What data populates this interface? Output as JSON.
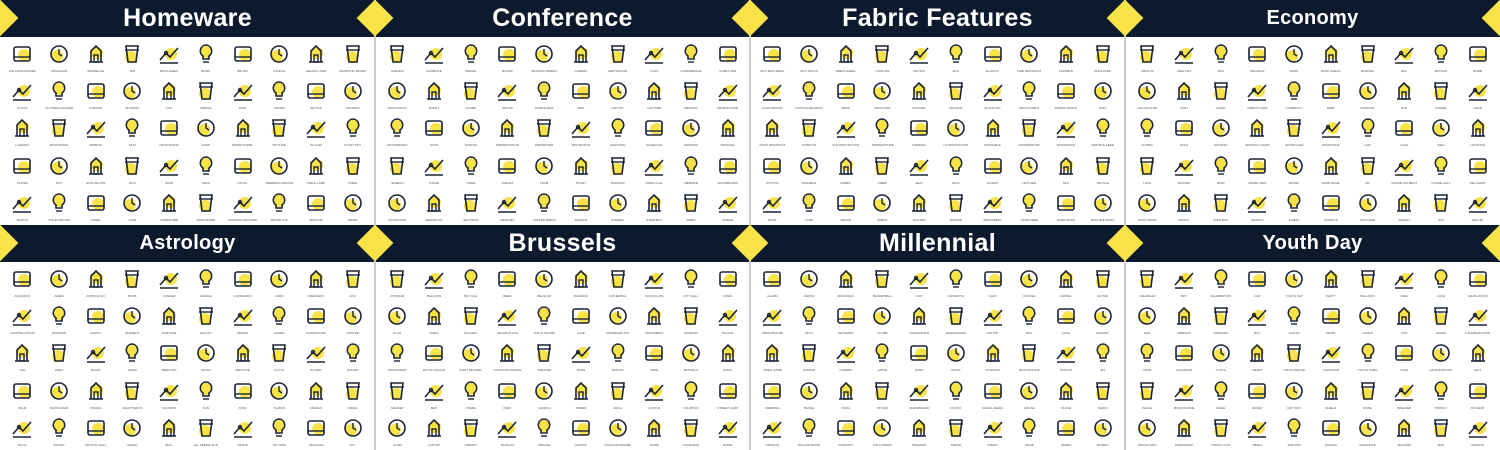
{
  "colors": {
    "header": "#0d1a2e",
    "accent": "#f8e348",
    "stroke": "#1c2434",
    "divider": "#c9ccd1"
  },
  "panels": [
    {
      "title": "Homeware",
      "icons": [
        "air conditioner",
        "armchair",
        "barbecue",
        "bin",
        "bookshelf",
        "bowl",
        "brush",
        "candle",
        "ceiling lamp",
        "chopping board",
        "clock",
        "clothes hanger",
        "curtain",
        "dustpan",
        "fan",
        "fridge",
        "iron",
        "juicer",
        "kettle",
        "lantern",
        "laundry",
        "microwave",
        "mirror",
        "mug",
        "nightstand",
        "oven",
        "paper towel",
        "picture",
        "pillow",
        "plant pot",
        "plates",
        "pot",
        "rolling pin",
        "rug",
        "soap",
        "sofa",
        "stool",
        "sweeping brush",
        "table lamp",
        "table",
        "teapot",
        "toilet brush",
        "towel",
        "vase",
        "wardrobe",
        "wash basin",
        "washing machine",
        "water jug",
        "window",
        "wiper"
      ]
    },
    {
      "title": "Conference",
      "icons": [
        "agenda",
        "audience",
        "badge",
        "board",
        "brainstorming",
        "camera",
        "certificate",
        "chat",
        "conference",
        "computer",
        "discussion",
        "event",
        "globe",
        "group",
        "handshake",
        "idea",
        "laptop",
        "lecture",
        "meeting",
        "microphone",
        "networking",
        "note",
        "podium",
        "presentation",
        "presenter",
        "projector",
        "question",
        "schedule",
        "seminar",
        "speaker",
        "speech",
        "stage",
        "table",
        "target",
        "team",
        "ticket",
        "training",
        "video call",
        "webinar",
        "whiteboard",
        "workshop",
        "hierarchy",
        "settings",
        "headset",
        "coffee break",
        "search",
        "screen",
        "strategy",
        "timer",
        "mobile"
      ]
    },
    {
      "title": "Fabric Features",
      "icons": [
        "anti bacterial",
        "anti static",
        "breathable",
        "cooling",
        "drying",
        "eco",
        "elastic",
        "fire resistant",
        "flexible",
        "insulated",
        "lightweight",
        "hypoallergenic",
        "mesh",
        "moisture",
        "natural",
        "organic",
        "quick dry",
        "recyclable",
        "shrink proof",
        "soft",
        "stain resistant",
        "stretch",
        "sun protection",
        "temperature",
        "thermal",
        "uv protection",
        "washable",
        "waterproof",
        "windproof",
        "wrinkle free",
        "cotton",
        "durable",
        "fabric",
        "fiber",
        "heat",
        "iron",
        "layers",
        "leather",
        "silk",
        "textile",
        "wool",
        "yarn",
        "weave",
        "sweat",
        "quilted",
        "padded",
        "absorbent",
        "odor free",
        "hand wash",
        "machine wash"
      ]
    },
    {
      "title": "Economy",
      "icons": [
        "abacus",
        "analysis",
        "bag",
        "balance",
        "bank",
        "bank check",
        "banking",
        "bill",
        "bitcoin",
        "bomb",
        "calculator",
        "cart",
        "chart",
        "credit card",
        "currency",
        "debt",
        "diamond",
        "eye",
        "funnel",
        "gear",
        "global",
        "gold",
        "growth",
        "growth chart",
        "hourglass",
        "insurance",
        "law",
        "loan",
        "idea",
        "location",
        "lock",
        "magnet",
        "mind",
        "money bag",
        "money",
        "mortgage",
        "oil",
        "online payment",
        "phone call",
        "pie chart",
        "piggy bank",
        "profit",
        "safe box",
        "search",
        "shield",
        "startup",
        "suitcase",
        "target",
        "aim",
        "wallet"
      ]
    },
    {
      "title": "Astrology",
      "icons": [
        "aquarius",
        "aries",
        "astrology",
        "book",
        "cancer",
        "candle",
        "capricorn",
        "card",
        "crescent",
        "eye",
        "constellation",
        "diamond",
        "earth",
        "element",
        "fortune",
        "galaxy",
        "gemini",
        "hamsa",
        "horoscope",
        "jupiter",
        "leo",
        "libra",
        "magic",
        "mars",
        "mercury",
        "moon",
        "neptune",
        "pluto",
        "planet",
        "saturn",
        "palm",
        "pentagram",
        "pisces",
        "sagittarius",
        "scorpio",
        "sun",
        "star",
        "taurus",
        "uranus",
        "virgo",
        "skull",
        "zodiac",
        "crystal ball",
        "wheel",
        "bull",
        "all seeing eye",
        "venus",
        "yin yang",
        "triangle",
        "sky"
      ]
    },
    {
      "title": "Brussels",
      "icons": [
        "atomium",
        "balloon",
        "bicycle",
        "beer",
        "belgium",
        "building",
        "cathedral",
        "chocolate",
        "city hall",
        "comic",
        "flag",
        "fries",
        "gallery",
        "grand place",
        "guild house",
        "lace",
        "manneken pis",
        "monument",
        "museum",
        "palace",
        "parliament",
        "royal palace",
        "saint michael",
        "stock exchange",
        "theater",
        "tram",
        "waffle",
        "wine",
        "mussels",
        "euro",
        "market",
        "map",
        "opera",
        "park",
        "church",
        "tower",
        "arch",
        "castle",
        "fountain",
        "street lamp",
        "atom",
        "laptop",
        "library",
        "basilica",
        "arcade",
        "capitol",
        "cinquantenaire",
        "spire",
        "calendar",
        "guide"
      ]
    },
    {
      "title": "Millennial",
      "icons": [
        "alarm",
        "avatar",
        "backpack",
        "basketball",
        "cap",
        "cassette",
        "chat",
        "coffee",
        "drone",
        "guitar",
        "smartphone",
        "vinyl",
        "network",
        "globe",
        "graduation",
        "headphones",
        "laptop",
        "mail",
        "love",
        "rocket",
        "video game",
        "gaming",
        "camera",
        "apple",
        "hand",
        "skate",
        "console",
        "microphone",
        "tooltip",
        "jet",
        "wedding",
        "travel",
        "pizza",
        "studio",
        "skateboard",
        "photo",
        "social media",
        "house",
        "plane",
        "radio",
        "growth",
        "roller skate",
        "podcast",
        "followers",
        "speaker",
        "trend",
        "tablet",
        "home",
        "hands",
        "woman"
      ]
    },
    {
      "title": "Youth Day",
      "icons": [
        "calendar",
        "boy",
        "celebration",
        "cap",
        "youth day",
        "party",
        "balloon",
        "idea",
        "love",
        "graduation",
        "girl",
        "friends",
        "speaker",
        "boy",
        "guitar",
        "music",
        "lungs",
        "tick",
        "hands",
        "calendar date",
        "date",
        "calendar",
        "youth",
        "heart",
        "youth badge",
        "calendar",
        "youth card",
        "date",
        "calendar day",
        "gift",
        "peace",
        "microphone",
        "smile",
        "money",
        "gift box",
        "shield",
        "rose",
        "speaker",
        "trophy",
        "student",
        "peace sign",
        "friendship",
        "trophy cup",
        "medal",
        "doctor",
        "woman",
        "graduate",
        "teacher",
        "man",
        "person"
      ]
    }
  ]
}
